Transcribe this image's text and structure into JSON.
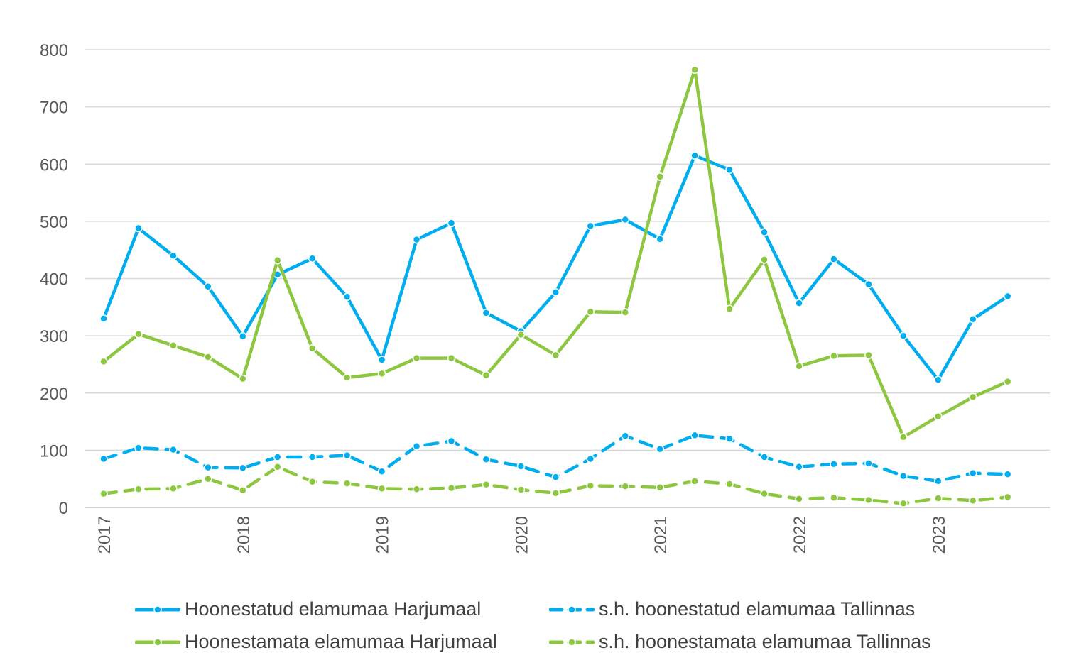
{
  "chart_data": {
    "type": "line",
    "title": "",
    "xlabel": "",
    "ylabel": "",
    "ylim": [
      0,
      800
    ],
    "yticks": [
      0,
      100,
      200,
      300,
      400,
      500,
      600,
      700,
      800
    ],
    "grid": true,
    "legend_position": "bottom",
    "x_tick_labels": [
      "2017",
      "2018",
      "2019",
      "2020",
      "2021",
      "2022",
      "2023"
    ],
    "x_quarters": [
      "2017 Q1",
      "2017 Q2",
      "2017 Q3",
      "2017 Q4",
      "2018 Q1",
      "2018 Q2",
      "2018 Q3",
      "2018 Q4",
      "2019 Q1",
      "2019 Q2",
      "2019 Q3",
      "2019 Q4",
      "2020 Q1",
      "2020 Q2",
      "2020 Q3",
      "2020 Q4",
      "2021 Q1",
      "2021 Q2",
      "2021 Q3",
      "2021 Q4",
      "2022 Q1",
      "2022 Q2",
      "2022 Q3",
      "2022 Q4",
      "2023 Q1",
      "2023 Q2",
      "2023 Q3"
    ],
    "series": [
      {
        "name": "Hoonestatud elamumaa Harjumaal",
        "color": "#00AEEF",
        "dash": "solid",
        "values": [
          330,
          488,
          440,
          386,
          299,
          407,
          435,
          368,
          258,
          468,
          497,
          340,
          308,
          376,
          492,
          503,
          469,
          615,
          590,
          481,
          357,
          434,
          390,
          300,
          223,
          329,
          369
        ]
      },
      {
        "name": "s.h. hoonestatud elamumaa Tallinnas",
        "color": "#00AEEF",
        "dash": "dashed",
        "values": [
          85,
          104,
          101,
          70,
          69,
          88,
          88,
          91,
          63,
          107,
          116,
          84,
          72,
          53,
          85,
          125,
          102,
          126,
          120,
          88,
          71,
          76,
          77,
          55,
          46,
          60,
          58
        ]
      },
      {
        "name": "Hoonestamata elamumaa Harjumaal",
        "color": "#8DC63F",
        "dash": "solid",
        "values": [
          255,
          303,
          283,
          263,
          225,
          432,
          278,
          227,
          234,
          261,
          261,
          231,
          302,
          266,
          342,
          341,
          578,
          765,
          347,
          433,
          247,
          265,
          266,
          123,
          159,
          193,
          220
        ]
      },
      {
        "name": "s.h. hoonestamata elamumaa Tallinnas",
        "color": "#8DC63F",
        "dash": "dashed",
        "values": [
          24,
          32,
          33,
          50,
          30,
          71,
          45,
          42,
          33,
          32,
          34,
          40,
          31,
          25,
          38,
          37,
          35,
          46,
          41,
          24,
          15,
          17,
          13,
          7,
          16,
          12,
          18
        ]
      }
    ]
  }
}
